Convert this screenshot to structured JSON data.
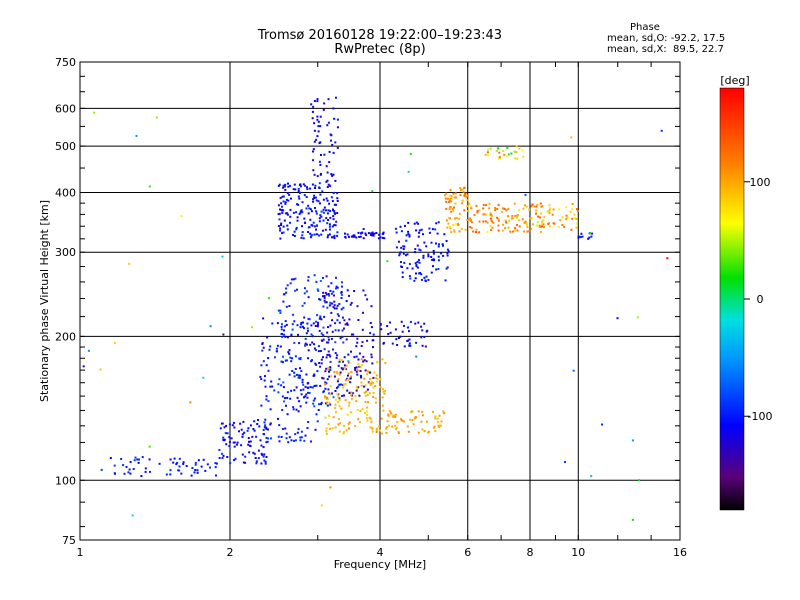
{
  "header": {
    "title_line1": "Tromsø 20160128 19:22:00–19:23:43",
    "title_line2": "RwPretec (8p)"
  },
  "phase_info": {
    "heading": "Phase",
    "line1": "mean, sd,O: -92.2, 17.5",
    "line2": "mean, sd,X:  89.5, 22.7"
  },
  "colorbar": {
    "unit_label": "[deg]",
    "ticks": [
      "100",
      "0",
      "-100"
    ],
    "tick_values": [
      100,
      0,
      -100
    ],
    "range": [
      -180,
      180
    ]
  },
  "chart_data": {
    "type": "scatter",
    "xlabel": "Frequency [MHz]",
    "ylabel": "Stationary phase Virtual Height [km]",
    "x_scale": "log",
    "y_scale": "log",
    "xlim": [
      1,
      16
    ],
    "ylim": [
      75,
      750
    ],
    "x_ticks": [
      1,
      2,
      4,
      6,
      8,
      10,
      16
    ],
    "x_tick_labels": [
      "1",
      "2",
      "4",
      "6",
      "8",
      "10",
      "16"
    ],
    "y_ticks": [
      75,
      100,
      200,
      300,
      400,
      500,
      600,
      750
    ],
    "y_tick_labels": [
      "75",
      "100",
      "200",
      "300",
      "400",
      "500",
      "600",
      "750"
    ],
    "grid": true,
    "traces": [
      {
        "kind": "cloud",
        "f_range": [
          1.1,
          1.9
        ],
        "h_range": [
          102,
          112
        ],
        "phase_mean": -100,
        "phase_sd": 12,
        "count": 60
      },
      {
        "kind": "cloud",
        "f_range": [
          1.9,
          2.4
        ],
        "h_range": [
          108,
          135
        ],
        "phase_mean": -105,
        "phase_sd": 15,
        "count": 90
      },
      {
        "kind": "cloud",
        "f_range": [
          2.3,
          3.0
        ],
        "h_range": [
          120,
          220
        ],
        "phase_mean": -100,
        "phase_sd": 18,
        "count": 170
      },
      {
        "kind": "cloud",
        "f_range": [
          2.5,
          3.4
        ],
        "h_range": [
          140,
          270
        ],
        "phase_mean": -95,
        "phase_sd": 22,
        "count": 150
      },
      {
        "kind": "cloud",
        "f_range": [
          3.0,
          3.9
        ],
        "h_range": [
          150,
          250
        ],
        "phase_mean": -120,
        "phase_sd": 20,
        "count": 160
      },
      {
        "kind": "cloud",
        "f_range": [
          3.1,
          4.1
        ],
        "h_range": [
          125,
          180
        ],
        "phase_mean": 95,
        "phase_sd": 15,
        "count": 150
      },
      {
        "kind": "cloud",
        "f_range": [
          4.1,
          5.4
        ],
        "h_range": [
          125,
          140
        ],
        "phase_mean": 100,
        "phase_sd": 12,
        "count": 60
      },
      {
        "kind": "cloud",
        "f_range": [
          2.5,
          3.3
        ],
        "h_range": [
          320,
          420
        ],
        "phase_mean": -105,
        "phase_sd": 15,
        "count": 200
      },
      {
        "kind": "cloud",
        "f_range": [
          2.9,
          3.3
        ],
        "h_range": [
          420,
          640
        ],
        "phase_mean": -110,
        "phase_sd": 12,
        "count": 60
      },
      {
        "kind": "cloud",
        "f_range": [
          3.4,
          4.1
        ],
        "h_range": [
          320,
          330
        ],
        "phase_mean": -110,
        "phase_sd": 10,
        "count": 40
      },
      {
        "kind": "cloud",
        "f_range": [
          4.3,
          5.5
        ],
        "h_range": [
          260,
          350
        ],
        "phase_mean": -105,
        "phase_sd": 12,
        "count": 110
      },
      {
        "kind": "cloud",
        "f_range": [
          5.4,
          6.0
        ],
        "h_range": [
          330,
          410
        ],
        "phase_mean": 105,
        "phase_sd": 25,
        "count": 70
      },
      {
        "kind": "cloud",
        "f_range": [
          6.0,
          7.5
        ],
        "h_range": [
          330,
          380
        ],
        "phase_mean": 110,
        "phase_sd": 30,
        "count": 80
      },
      {
        "kind": "cloud",
        "f_range": [
          7.5,
          10.0
        ],
        "h_range": [
          330,
          380
        ],
        "phase_mean": 100,
        "phase_sd": 35,
        "count": 90
      },
      {
        "kind": "cloud",
        "f_range": [
          6.5,
          7.8
        ],
        "h_range": [
          470,
          500
        ],
        "phase_mean": 60,
        "phase_sd": 60,
        "count": 25
      },
      {
        "kind": "cloud",
        "f_range": [
          10.0,
          10.8
        ],
        "h_range": [
          320,
          330
        ],
        "phase_mean": -100,
        "phase_sd": 10,
        "count": 10
      },
      {
        "kind": "cloud",
        "f_range": [
          4.0,
          5.0
        ],
        "h_range": [
          190,
          215
        ],
        "phase_mean": -110,
        "phase_sd": 15,
        "count": 40
      },
      {
        "kind": "cloud",
        "f_range": [
          1.0,
          16.0
        ],
        "h_range": [
          80,
          700
        ],
        "phase_mean": 0,
        "phase_sd": 120,
        "count": 45
      }
    ]
  }
}
